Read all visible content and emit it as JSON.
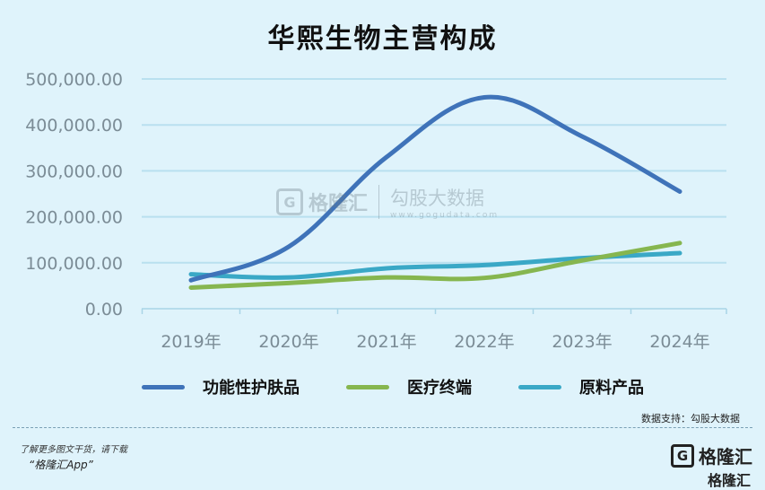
{
  "title": "华熙生物主营构成",
  "chart_data": {
    "type": "line",
    "x": [
      "2019年",
      "2020年",
      "2021年",
      "2022年",
      "2023年",
      "2024年"
    ],
    "y_ticks": [
      "0.00",
      "100,000.00",
      "200,000.00",
      "300,000.00",
      "400,000.00",
      "500,000.00"
    ],
    "ylim": [
      0,
      500000
    ],
    "grid": true,
    "legend_position": "bottom",
    "series": [
      {
        "name": "功能性护肤品",
        "color": "#3f73b9",
        "values": [
          62000,
          135000,
          330000,
          460000,
          375000,
          255000
        ]
      },
      {
        "name": "医疗终端",
        "color": "#86b64f",
        "values": [
          46000,
          56000,
          68000,
          67000,
          105000,
          143000
        ]
      },
      {
        "name": "原料产品",
        "color": "#3aa8c6",
        "values": [
          75000,
          68000,
          88000,
          95000,
          110000,
          121000
        ]
      }
    ]
  },
  "watermark": {
    "logo_glyph": "G",
    "brand": "格隆汇",
    "partner": "勾股大数据",
    "partner_url": "www.gogudata.com"
  },
  "source": "数据支持：勾股大数据",
  "footer": {
    "note": "了解更多图文干货，请下载",
    "app": "“格隆汇App”",
    "brand_glyph": "G",
    "brand_name": "格隆汇",
    "brand_sub": "格隆汇"
  }
}
